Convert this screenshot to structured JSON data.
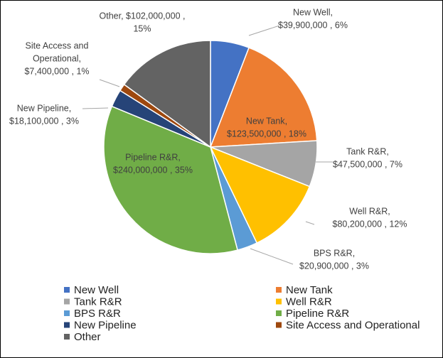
{
  "chart_data": {
    "type": "pie",
    "categories": [
      "New Well",
      "New Tank",
      "Tank R&R",
      "Well R&R",
      "BPS R&R",
      "Pipeline R&R",
      "New Pipeline",
      "Site Access and Operational",
      "Other"
    ],
    "values": [
      39900000,
      123500000,
      47500000,
      80200000,
      20900000,
      240000000,
      18100000,
      7400000,
      102000000
    ],
    "percents": [
      6,
      18,
      7,
      12,
      3,
      35,
      3,
      1,
      15
    ],
    "data_labels": [
      [
        "New Well,",
        "$39,900,000 , 6%"
      ],
      [
        "New Tank,",
        "$123,500,000 , 18%"
      ],
      [
        "Tank R&R,",
        "$47,500,000 , 7%"
      ],
      [
        "Well R&R,",
        "$80,200,000 , 12%"
      ],
      [
        "BPS R&R,",
        "$20,900,000 , 3%"
      ],
      [
        "Pipeline R&R,",
        "$240,000,000 , 35%"
      ],
      [
        "New Pipeline,",
        "$18,100,000 , 3%"
      ],
      [
        "Site Access and",
        "Operational,",
        "$7,400,000 , 1%"
      ],
      [
        "Other,  $102,000,000 ,",
        "15%"
      ]
    ],
    "colors": [
      "#4472c4",
      "#ed7d31",
      "#a5a5a5",
      "#ffc000",
      "#5b9bd5",
      "#70ad47",
      "#264478",
      "#9e480e",
      "#636363"
    ],
    "legend": "bottom"
  }
}
